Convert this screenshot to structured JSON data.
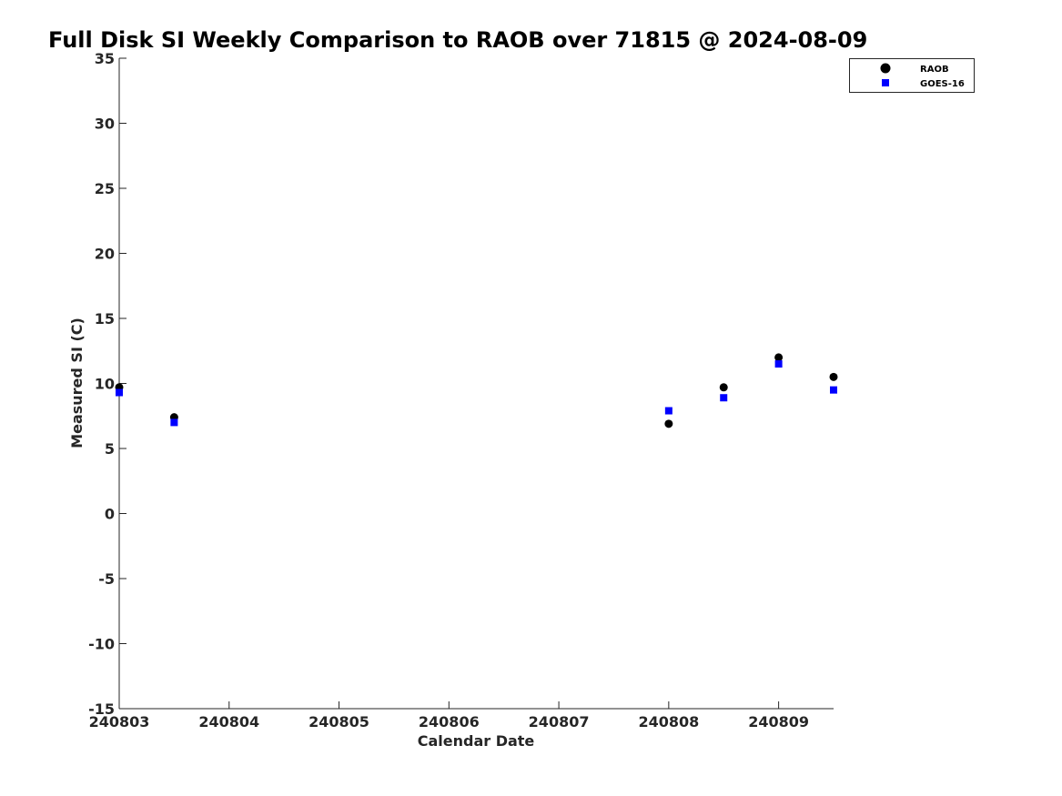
{
  "chart_data": {
    "type": "scatter",
    "title": "Full Disk SI Weekly Comparison to RAOB over 71815 @ 2024-08-09",
    "xlabel": "Calendar Date",
    "ylabel": "Measured SI (C)",
    "xlim": [
      "2024-08-03",
      "2024-08-09 12:00"
    ],
    "ylim": [
      -15,
      35
    ],
    "x_tick_labels": [
      "240803",
      "240804",
      "240805",
      "240806",
      "240807",
      "240808",
      "240809"
    ],
    "y_tick_labels": [
      "35",
      "30",
      "25",
      "20",
      "15",
      "10",
      "5",
      "0",
      "-5",
      "-10",
      "-15"
    ],
    "grid": false,
    "legend_position": "top-right",
    "series": [
      {
        "name": "RAOB",
        "marker": "circle",
        "color": "#000000",
        "points": [
          {
            "x": "2024-08-03 00:00",
            "y": 9.7
          },
          {
            "x": "2024-08-03 12:00",
            "y": 7.4
          },
          {
            "x": "2024-08-08 00:00",
            "y": 6.9
          },
          {
            "x": "2024-08-08 12:00",
            "y": 9.7
          },
          {
            "x": "2024-08-09 00:00",
            "y": 12.0
          },
          {
            "x": "2024-08-09 12:00",
            "y": 10.5
          }
        ]
      },
      {
        "name": "GOES-16",
        "marker": "square",
        "color": "#0000ff",
        "points": [
          {
            "x": "2024-08-03 00:00",
            "y": 9.3
          },
          {
            "x": "2024-08-03 12:00",
            "y": 7.0
          },
          {
            "x": "2024-08-08 00:00",
            "y": 7.9
          },
          {
            "x": "2024-08-08 12:00",
            "y": 8.9
          },
          {
            "x": "2024-08-09 00:00",
            "y": 11.5
          },
          {
            "x": "2024-08-09 12:00",
            "y": 9.5
          }
        ]
      }
    ]
  }
}
